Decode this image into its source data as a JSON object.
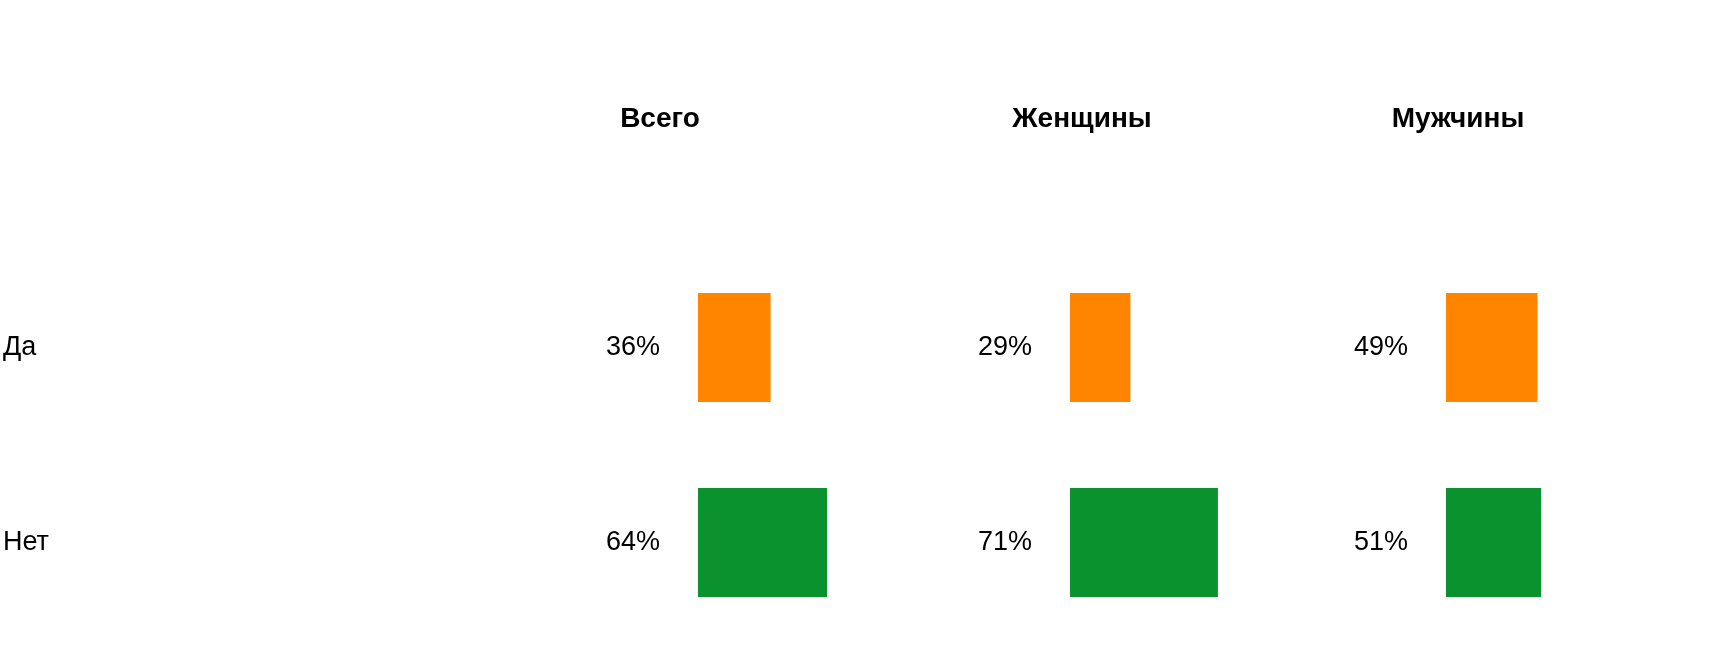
{
  "chart_data": [
    {
      "type": "bar",
      "orientation": "horizontal",
      "title": "Всего",
      "categories": [
        "Да",
        "Нет"
      ],
      "values": [
        36,
        64
      ],
      "value_labels": [
        "36%",
        "64%"
      ],
      "colors": [
        "#ff8400",
        "#09922e"
      ],
      "tick_labels": "y"
    },
    {
      "type": "bar",
      "orientation": "horizontal",
      "title": "Женщины",
      "categories": [
        null,
        null
      ],
      "values": [
        29,
        71
      ],
      "value_labels": [
        "29%",
        "71%"
      ],
      "colors": [
        "#ff8400",
        "#09922e"
      ],
      "tick_labels": false
    },
    {
      "type": "bar",
      "orientation": "horizontal",
      "title": "Мужчины",
      "categories": [
        null,
        null
      ],
      "values": [
        49,
        51
      ],
      "value_labels": [
        "49%",
        "51%"
      ],
      "colors": [
        "#ff8400",
        "#09922e"
      ],
      "tick_labels": false
    }
  ]
}
